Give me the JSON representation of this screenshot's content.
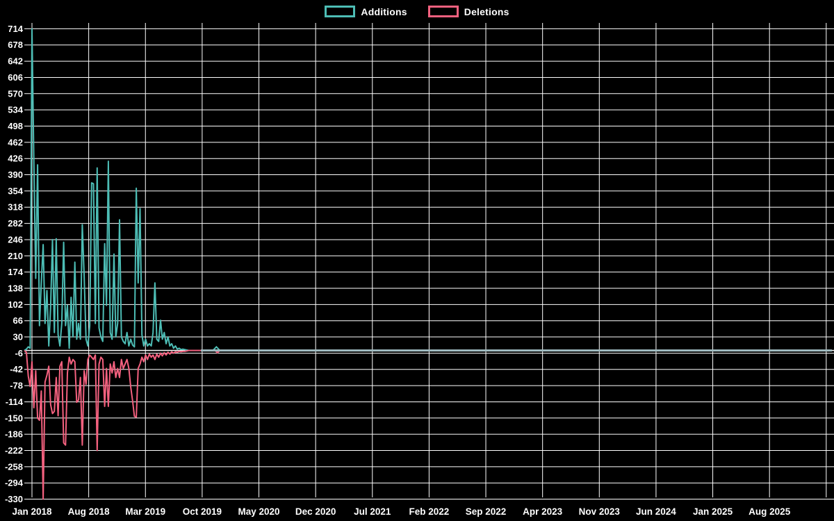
{
  "legend": {
    "items": [
      {
        "label": "Additions",
        "color": "#4dbdb5"
      },
      {
        "label": "Deletions",
        "color": "#f4617f"
      }
    ]
  },
  "colors": {
    "background": "#000000",
    "grid": "#ffffff",
    "additions": "#4dbdb5",
    "deletions": "#f4617f",
    "flat_zero_line": "#9fbabf",
    "text": "#ffffff"
  },
  "chart_data": {
    "type": "line",
    "title": "",
    "xlabel": "",
    "ylabel": "",
    "legend_position": "top-center",
    "grid": true,
    "y_axis": {
      "min": -330,
      "max": 714,
      "step": 36,
      "ticks": [
        714,
        678,
        642,
        606,
        570,
        534,
        498,
        462,
        426,
        390,
        354,
        318,
        282,
        246,
        210,
        174,
        138,
        102,
        66,
        30,
        -6,
        -42,
        -78,
        -114,
        -150,
        -186,
        -222,
        -258,
        -294,
        -330
      ]
    },
    "x_axis": {
      "tick_labels": [
        "Jan 2018",
        "Aug 2018",
        "Mar 2019",
        "Oct 2019",
        "May 2020",
        "Dec 2020",
        "Jul 2021",
        "Feb 2022",
        "Sep 2022",
        "Apr 2023",
        "Nov 2023",
        "Jun 2024",
        "Jan 2025",
        "Aug 2025"
      ],
      "months_per_tick": 7,
      "unlabeled_trailing_gridlines": 1
    },
    "sampling": "weekly",
    "weeks_before_first_tick": 3,
    "series": [
      {
        "name": "Additions",
        "color": "#4dbdb5",
        "weekly_values": [
          3,
          8,
          5,
          714,
          420,
          160,
          412,
          55,
          150,
          235,
          60,
          133,
          10,
          95,
          246,
          40,
          248,
          35,
          10,
          60,
          240,
          55,
          100,
          5,
          118,
          30,
          196,
          25,
          60,
          25,
          279,
          165,
          25,
          10,
          55,
          372,
          370,
          60,
          405,
          50,
          30,
          20,
          237,
          100,
          420,
          40,
          25,
          214,
          30,
          60,
          290,
          30,
          20,
          15,
          40,
          10,
          25,
          12,
          8,
          360,
          150,
          315,
          35,
          10,
          25,
          10,
          15,
          10,
          40,
          150,
          25,
          20,
          67,
          25,
          40,
          15,
          30,
          10,
          15,
          5,
          10,
          3,
          5,
          2,
          3,
          2
        ]
      },
      {
        "name": "Deletions",
        "color": "#f4617f",
        "weekly_values": [
          -4,
          -57,
          -80,
          -25,
          -127,
          -45,
          -150,
          -155,
          -90,
          -330,
          -70,
          -55,
          -35,
          -120,
          -140,
          -135,
          -60,
          -145,
          -35,
          -25,
          -205,
          -210,
          -50,
          -15,
          -30,
          -20,
          -25,
          -115,
          -110,
          -60,
          -210,
          -45,
          -75,
          -20,
          -10,
          -15,
          -20,
          -10,
          -222,
          -30,
          -15,
          -20,
          -124,
          -40,
          -124,
          -30,
          -50,
          -25,
          -60,
          -40,
          -60,
          -20,
          -40,
          -30,
          -20,
          -40,
          -81,
          -112,
          -146,
          -148,
          -40,
          -30,
          -15,
          -25,
          -10,
          -20,
          -8,
          -15,
          -10,
          -20,
          -8,
          -15,
          -6,
          -12,
          -5,
          -10,
          -4,
          -8,
          -3,
          -6,
          -3,
          -4,
          -2,
          -3,
          -2,
          -2
        ]
      }
    ],
    "late_bump": {
      "week_index": 102,
      "additions": 8,
      "deletions": -5
    },
    "flat_zero_after_week": 103
  }
}
